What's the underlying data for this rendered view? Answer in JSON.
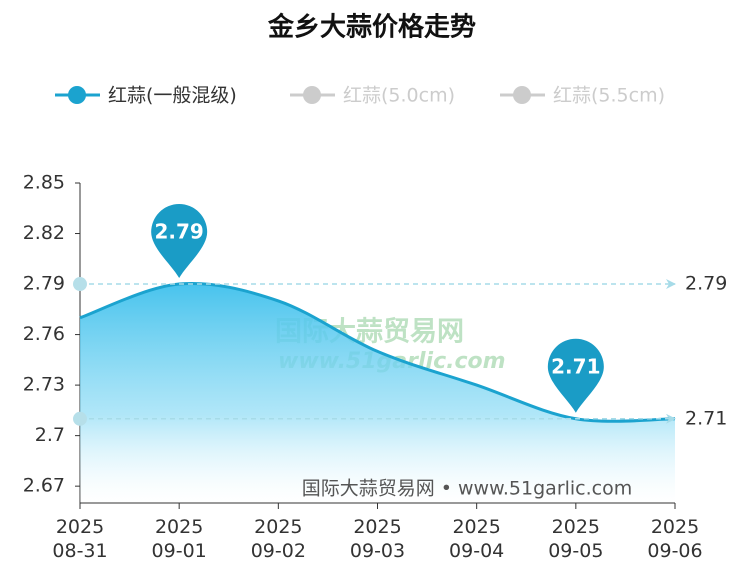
{
  "chart_data": {
    "type": "line",
    "title": "金乡大蒜价格走势",
    "categories": [
      "2025\n08-31",
      "2025\n09-01",
      "2025\n09-02",
      "2025\n09-03",
      "2025\n09-04",
      "2025\n09-05",
      "2025\n09-06"
    ],
    "series": [
      {
        "name": "红蒜(一般混级)",
        "color": "#1ba3cf",
        "values": [
          2.77,
          2.79,
          2.78,
          2.75,
          2.73,
          2.71,
          2.71
        ]
      },
      {
        "name": "红蒜(5.0cm)",
        "color": "#cccccc",
        "hidden": true
      },
      {
        "name": "红蒜(5.5cm)",
        "color": "#cccccc",
        "hidden": true
      }
    ],
    "ylim": [
      2.66,
      2.85
    ],
    "yticks": [
      2.67,
      2.7,
      2.73,
      2.76,
      2.79,
      2.82,
      2.85
    ],
    "mark_points": [
      2.79,
      2.71
    ],
    "mark_lines": [
      2.79,
      2.71
    ],
    "watermark": "国际大蒜贸易网",
    "watermark_url": "www.51garlic.com",
    "source": "国际大蒜贸易网 • www.51garlic.com"
  }
}
